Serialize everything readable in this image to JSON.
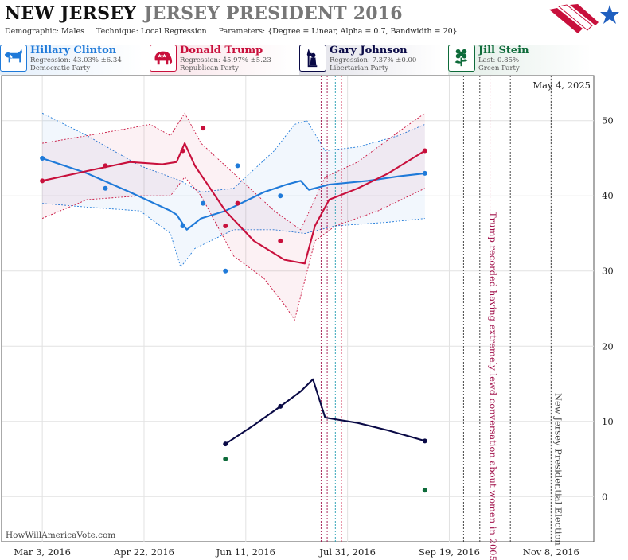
{
  "header": {
    "state": "NEW JERSEY",
    "race": "JERSEY PRESIDENT 2016",
    "demographic_label": "Demographic:",
    "demographic_value": "Males",
    "technique_label": "Technique:",
    "technique_value": "Local Regression",
    "parameters_label": "Parameters:",
    "parameters_value": "{Degree = Linear, Alpha = 0.7, Bandwidth = 20}"
  },
  "candidates": [
    {
      "name": "Hillary Clinton",
      "stat": "Regression: 43.03% ±6.34",
      "party": "Democratic Party",
      "color": "#1f7ad9",
      "icon": "donkey-icon"
    },
    {
      "name": "Donald Trump",
      "stat": "Regression: 45.97% ±5.23",
      "party": "Republican Party",
      "color": "#c8103c",
      "icon": "elephant-icon"
    },
    {
      "name": "Gary Johnson",
      "stat": "Regression: 7.37% ±0.00",
      "party": "Libertarian Party",
      "color": "#0a0a46",
      "icon": "statue-of-liberty-icon"
    },
    {
      "name": "Jill Stein",
      "stat": "Last: 0.85%",
      "party": "Green Party",
      "color": "#0e6b3a",
      "icon": "flower-icon"
    }
  ],
  "chart_data": {
    "type": "line",
    "date_label": "May 4, 2025",
    "watermark": "HowWillAmericaVote.com",
    "x_ticks": [
      "Mar 3, 2016",
      "Apr 22, 2016",
      "Jun 11, 2016",
      "Jul 31, 2016",
      "Sep 19, 2016",
      "Nov 8, 2016"
    ],
    "x_tick_dates": [
      "2016-03-03",
      "2016-04-22",
      "2016-06-11",
      "2016-07-31",
      "2016-09-19",
      "2016-11-08"
    ],
    "x_range": [
      "2016-02-12",
      "2016-11-29"
    ],
    "ylim": [
      -6,
      56
    ],
    "y_ticks": [
      0,
      10,
      20,
      30,
      40,
      50
    ],
    "grid": true,
    "annotations": [
      {
        "text": "Trump recorded having extremely lewd conversation about women in 2005",
        "date": "2016-10-07",
        "color": "#a0104a"
      },
      {
        "text": "New Jersey Presidential Election",
        "date": "2016-11-08",
        "color": "#444444"
      }
    ],
    "event_lines": [
      {
        "date": "2016-07-18",
        "color": "#a0104a"
      },
      {
        "date": "2016-07-21",
        "color": "#a0104a"
      },
      {
        "date": "2016-07-25",
        "color": "#1f9ab0"
      },
      {
        "date": "2016-07-28",
        "color": "#c8103c"
      },
      {
        "date": "2016-09-26",
        "color": "#333333"
      },
      {
        "date": "2016-10-04",
        "color": "#333333"
      },
      {
        "date": "2016-10-07",
        "color": "#a0104a"
      },
      {
        "date": "2016-10-09",
        "color": "#c8103c"
      },
      {
        "date": "2016-10-19",
        "color": "#333333"
      },
      {
        "date": "2016-11-08",
        "color": "#333333"
      }
    ],
    "series": [
      {
        "name": "Hillary Clinton",
        "color": "#1f7ad9",
        "points": [
          [
            "2016-03-03",
            45
          ],
          [
            "2016-04-03",
            41
          ],
          [
            "2016-05-11",
            36
          ],
          [
            "2016-05-21",
            39
          ],
          [
            "2016-06-01",
            30
          ],
          [
            "2016-06-07",
            44
          ],
          [
            "2016-06-28",
            40
          ],
          [
            "2016-09-07",
            43
          ]
        ],
        "trend": [
          [
            "2016-03-03",
            45
          ],
          [
            "2016-03-25",
            43
          ],
          [
            "2016-04-15",
            40.5
          ],
          [
            "2016-05-05",
            38
          ],
          [
            "2016-05-08",
            37.5
          ],
          [
            "2016-05-13",
            35.5
          ],
          [
            "2016-05-20",
            37
          ],
          [
            "2016-06-01",
            38
          ],
          [
            "2016-06-20",
            40.5
          ],
          [
            "2016-07-01",
            41.5
          ],
          [
            "2016-07-08",
            42
          ],
          [
            "2016-07-12",
            40.8
          ],
          [
            "2016-07-22",
            41.5
          ],
          [
            "2016-08-10",
            42
          ],
          [
            "2016-08-25",
            42.6
          ],
          [
            "2016-09-07",
            43
          ]
        ],
        "upper": [
          [
            "2016-03-03",
            51
          ],
          [
            "2016-03-25",
            48
          ],
          [
            "2016-04-20",
            44
          ],
          [
            "2016-05-10",
            42
          ],
          [
            "2016-05-20",
            40.5
          ],
          [
            "2016-06-05",
            41
          ],
          [
            "2016-06-25",
            46
          ],
          [
            "2016-07-05",
            49.5
          ],
          [
            "2016-07-11",
            50
          ],
          [
            "2016-07-20",
            46
          ],
          [
            "2016-08-05",
            46.5
          ],
          [
            "2016-08-25",
            48
          ],
          [
            "2016-09-07",
            49.5
          ]
        ],
        "lower": [
          [
            "2016-03-03",
            39
          ],
          [
            "2016-03-25",
            38.5
          ],
          [
            "2016-04-20",
            38
          ],
          [
            "2016-05-05",
            35
          ],
          [
            "2016-05-10",
            30.5
          ],
          [
            "2016-05-17",
            33
          ],
          [
            "2016-06-05",
            35.5
          ],
          [
            "2016-06-25",
            35.5
          ],
          [
            "2016-07-10",
            35
          ],
          [
            "2016-07-25",
            36
          ],
          [
            "2016-08-20",
            36.5
          ],
          [
            "2016-09-07",
            37
          ]
        ]
      },
      {
        "name": "Donald Trump",
        "color": "#c8103c",
        "points": [
          [
            "2016-03-03",
            42
          ],
          [
            "2016-04-03",
            44
          ],
          [
            "2016-05-11",
            46
          ],
          [
            "2016-05-21",
            49
          ],
          [
            "2016-06-01",
            36
          ],
          [
            "2016-06-07",
            39
          ],
          [
            "2016-06-28",
            34
          ],
          [
            "2016-09-07",
            46
          ]
        ],
        "trend": [
          [
            "2016-03-03",
            42
          ],
          [
            "2016-03-25",
            43.3
          ],
          [
            "2016-04-15",
            44.5
          ],
          [
            "2016-05-01",
            44.2
          ],
          [
            "2016-05-08",
            44.5
          ],
          [
            "2016-05-12",
            47
          ],
          [
            "2016-05-17",
            44
          ],
          [
            "2016-06-01",
            38
          ],
          [
            "2016-06-15",
            34
          ],
          [
            "2016-06-30",
            31.5
          ],
          [
            "2016-07-10",
            31
          ],
          [
            "2016-07-15",
            36
          ],
          [
            "2016-07-22",
            39.5
          ],
          [
            "2016-08-05",
            41
          ],
          [
            "2016-08-20",
            43
          ],
          [
            "2016-09-07",
            46
          ]
        ],
        "upper": [
          [
            "2016-03-03",
            47
          ],
          [
            "2016-03-25",
            48
          ],
          [
            "2016-04-15",
            49
          ],
          [
            "2016-04-25",
            49.5
          ],
          [
            "2016-05-05",
            48
          ],
          [
            "2016-05-12",
            51
          ],
          [
            "2016-05-20",
            47
          ],
          [
            "2016-06-05",
            43
          ],
          [
            "2016-06-25",
            38
          ],
          [
            "2016-07-08",
            35.5
          ],
          [
            "2016-07-20",
            42.5
          ],
          [
            "2016-08-05",
            44.5
          ],
          [
            "2016-08-25",
            48.5
          ],
          [
            "2016-09-07",
            51
          ]
        ],
        "lower": [
          [
            "2016-03-03",
            37
          ],
          [
            "2016-03-25",
            39.5
          ],
          [
            "2016-04-20",
            40
          ],
          [
            "2016-05-05",
            40
          ],
          [
            "2016-05-12",
            42.5
          ],
          [
            "2016-05-20",
            40
          ],
          [
            "2016-06-05",
            32
          ],
          [
            "2016-06-20",
            29
          ],
          [
            "2016-06-30",
            25.5
          ],
          [
            "2016-07-05",
            23.5
          ],
          [
            "2016-07-15",
            34
          ],
          [
            "2016-07-25",
            36
          ],
          [
            "2016-08-15",
            38
          ],
          [
            "2016-09-07",
            41
          ]
        ]
      },
      {
        "name": "Gary Johnson",
        "color": "#0a0a46",
        "points": [
          [
            "2016-06-01",
            7
          ],
          [
            "2016-06-28",
            12
          ],
          [
            "2016-09-07",
            7.4
          ]
        ],
        "trend": [
          [
            "2016-06-01",
            7
          ],
          [
            "2016-06-15",
            9.5
          ],
          [
            "2016-06-28",
            12
          ],
          [
            "2016-07-08",
            14
          ],
          [
            "2016-07-14",
            15.6
          ],
          [
            "2016-07-20",
            10.5
          ],
          [
            "2016-08-05",
            9.8
          ],
          [
            "2016-08-20",
            8.8
          ],
          [
            "2016-09-07",
            7.4
          ]
        ]
      },
      {
        "name": "Jill Stein",
        "color": "#0e6b3a",
        "points": [
          [
            "2016-06-01",
            5
          ],
          [
            "2016-09-07",
            0.85
          ]
        ]
      }
    ]
  }
}
